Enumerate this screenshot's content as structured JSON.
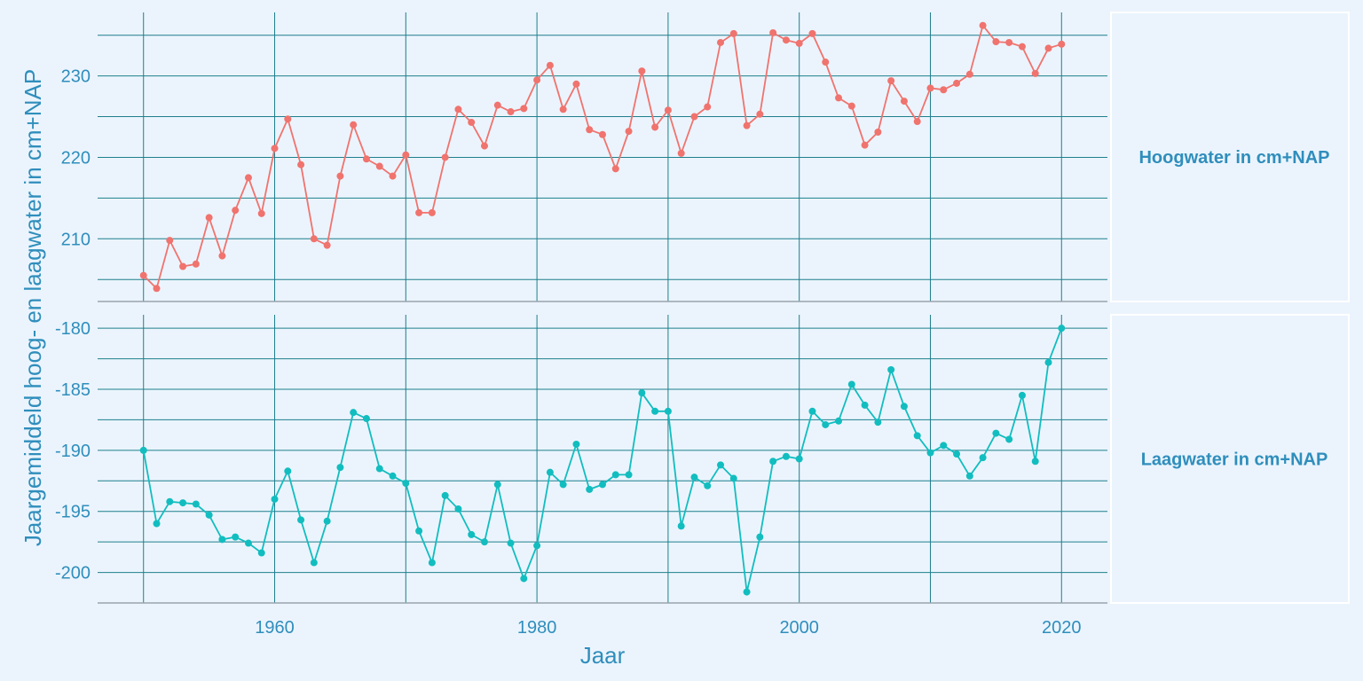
{
  "chart_data": {
    "type": "line",
    "xlabel": "Jaar",
    "ylabel": "Jaargemiddeld hoog- en laagwater in cm+NAP",
    "x_ticks": [
      1960,
      1980,
      2000,
      2020
    ],
    "xlim": [
      1946.5,
      2023.5
    ],
    "x": [
      1950,
      1951,
      1952,
      1953,
      1954,
      1955,
      1956,
      1957,
      1958,
      1959,
      1960,
      1961,
      1962,
      1963,
      1964,
      1965,
      1966,
      1967,
      1968,
      1969,
      1970,
      1971,
      1972,
      1973,
      1974,
      1975,
      1976,
      1977,
      1978,
      1979,
      1980,
      1981,
      1982,
      1983,
      1984,
      1985,
      1986,
      1987,
      1988,
      1989,
      1990,
      1991,
      1992,
      1993,
      1994,
      1995,
      1996,
      1997,
      1998,
      1999,
      2000,
      2001,
      2002,
      2003,
      2004,
      2005,
      2006,
      2007,
      2008,
      2009,
      2010,
      2011,
      2012,
      2013,
      2014,
      2015,
      2016,
      2017,
      2018,
      2019,
      2020
    ],
    "panels": [
      {
        "name": "Hoogwater in cm+NAP",
        "strip_label": "Hoogwater in cm+NAP",
        "color": "#f0736e",
        "ylim": [
          202.3,
          237.8
        ],
        "y_ticks": [
          "210",
          "220",
          "230"
        ],
        "y_tick_values": [
          210,
          220,
          230
        ],
        "values": [
          205.5,
          203.9,
          209.8,
          206.6,
          206.9,
          212.6,
          207.9,
          213.5,
          217.5,
          213.1,
          221.1,
          224.7,
          219.1,
          210.0,
          209.2,
          217.7,
          224.0,
          219.8,
          218.9,
          217.7,
          220.3,
          213.2,
          213.2,
          220.0,
          225.9,
          224.3,
          221.4,
          226.4,
          225.6,
          226.0,
          229.5,
          231.3,
          225.9,
          229.0,
          223.4,
          222.8,
          218.6,
          223.2,
          230.6,
          223.7,
          225.8,
          220.5,
          225.0,
          226.2,
          234.1,
          235.2,
          223.9,
          225.3,
          235.3,
          234.4,
          234.0,
          235.2,
          231.7,
          227.3,
          226.3,
          221.5,
          223.1,
          229.4,
          226.9,
          224.4,
          228.5,
          228.3,
          229.1,
          230.2,
          236.2,
          234.2,
          234.1,
          233.6,
          230.3,
          233.4,
          233.9
        ]
      },
      {
        "name": "Laagwater in cm+NAP",
        "strip_label": "Laagwater in cm+NAP",
        "color": "#12bdbf",
        "ylim": [
          -202.5,
          -178.9
        ],
        "y_ticks": [
          "-180",
          "-185",
          "-190",
          "-195",
          "-200"
        ],
        "y_tick_values": [
          -180,
          -185,
          -190,
          -195,
          -200
        ],
        "values": [
          -190.0,
          -196.0,
          -194.2,
          -194.3,
          -194.4,
          -195.3,
          -197.3,
          -197.1,
          -197.6,
          -198.4,
          -194.0,
          -191.7,
          -195.7,
          -199.2,
          -195.8,
          -191.4,
          -186.9,
          -187.4,
          -191.5,
          -192.1,
          -192.7,
          -196.6,
          -199.2,
          -193.7,
          -194.8,
          -196.9,
          -197.5,
          -192.8,
          -197.6,
          -200.5,
          -197.8,
          -191.8,
          -192.8,
          -189.5,
          -193.2,
          -192.8,
          -192.0,
          -192.0,
          -185.3,
          -186.8,
          -186.8,
          -196.2,
          -192.2,
          -192.9,
          -191.2,
          -192.3,
          -201.6,
          -197.1,
          -190.9,
          -190.5,
          -190.7,
          -186.8,
          -187.9,
          -187.6,
          -184.6,
          -186.3,
          -187.7,
          -183.4,
          -186.4,
          -188.8,
          -190.2,
          -189.6,
          -190.3,
          -192.1,
          -190.6,
          -188.6,
          -189.1,
          -185.5,
          -190.9,
          -182.8,
          -180.0
        ]
      }
    ]
  }
}
